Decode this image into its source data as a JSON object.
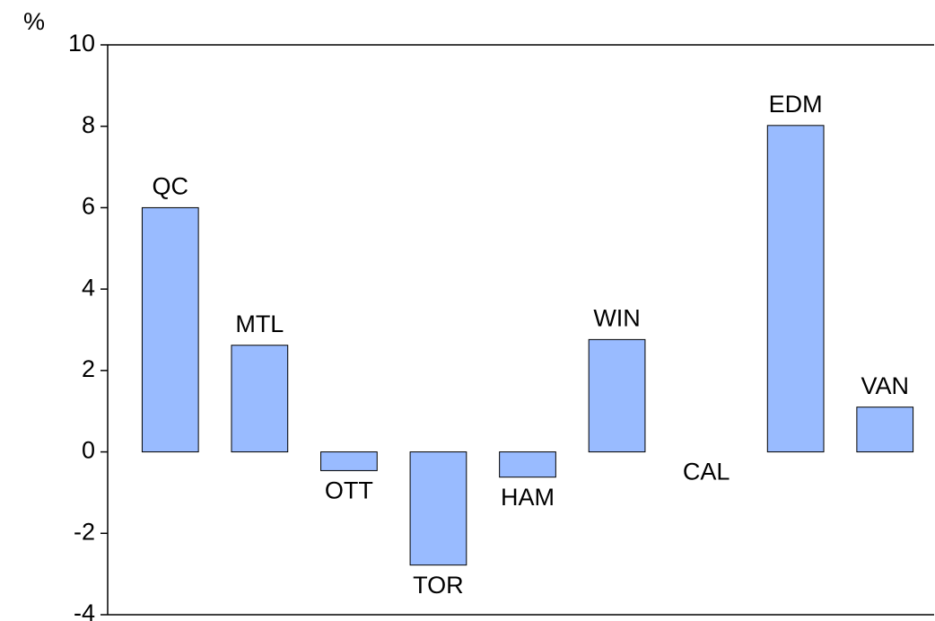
{
  "chart_data": {
    "type": "bar",
    "ylabel": "%",
    "categories": [
      "QC",
      "MTL",
      "OTT",
      "TOR",
      "HAM",
      "WIN",
      "CAL",
      "EDM",
      "VAN"
    ],
    "values": [
      6.0,
      2.62,
      -0.46,
      -2.78,
      -0.62,
      2.76,
      0,
      8.02,
      1.1
    ],
    "color": "#99bbff",
    "ylim": [
      -4,
      10
    ],
    "yticks": [
      -4,
      -2,
      0,
      2,
      4,
      6,
      8,
      10
    ],
    "grid": false
  }
}
